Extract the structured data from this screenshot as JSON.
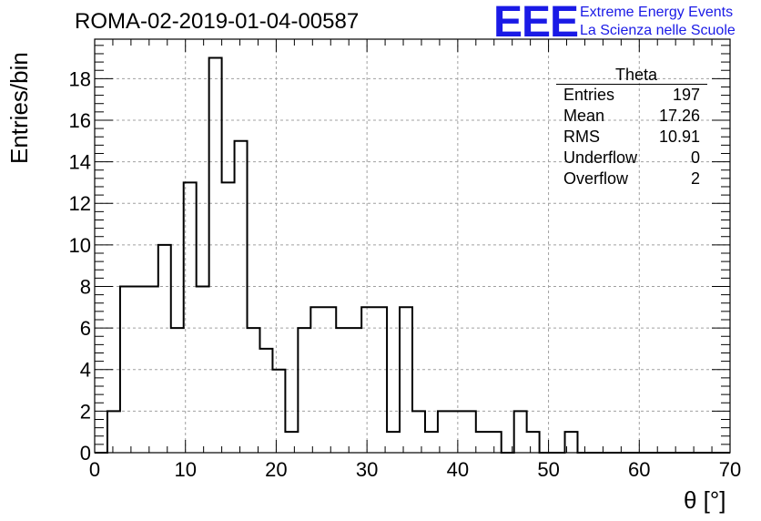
{
  "header": {
    "title": "ROMA-02-2019-01-04-00587",
    "logo_text": "EEE",
    "logo_line1": "Extreme Energy Events",
    "logo_line2": "La Scienza nelle Scuole"
  },
  "stats": {
    "name": "Theta",
    "rows": [
      {
        "label": "Entries",
        "value": "197"
      },
      {
        "label": "Mean",
        "value": "17.26"
      },
      {
        "label": "RMS",
        "value": "10.91"
      },
      {
        "label": "Underflow",
        "value": "0"
      },
      {
        "label": "Overflow",
        "value": "2"
      }
    ]
  },
  "colors": {
    "logo": "#1a1ae6",
    "line": "#000000",
    "grid": "#a0a0a0"
  },
  "chart_data": {
    "type": "histogram",
    "title": "ROMA-02-2019-01-04-00587",
    "xlabel": "θ [°]",
    "ylabel": "Entries/bin",
    "xlim": [
      0,
      70
    ],
    "ylim": [
      0,
      19.9
    ],
    "grid": true,
    "bin_width": 1.4,
    "x_start": 0,
    "xticks": [
      0,
      10,
      20,
      30,
      40,
      50,
      60,
      70
    ],
    "yticks": [
      0,
      2,
      4,
      6,
      8,
      10,
      12,
      14,
      16,
      18
    ],
    "values": [
      0,
      2,
      8,
      8,
      8,
      10,
      6,
      13,
      8,
      19,
      13,
      15,
      6,
      5,
      4,
      1,
      6,
      7,
      7,
      6,
      6,
      7,
      7,
      1,
      7,
      2,
      1,
      2,
      2,
      2,
      1,
      1,
      0,
      2,
      1,
      0,
      0,
      1,
      0,
      0,
      0,
      0,
      0,
      0,
      0,
      0,
      0,
      0,
      0,
      0
    ]
  }
}
